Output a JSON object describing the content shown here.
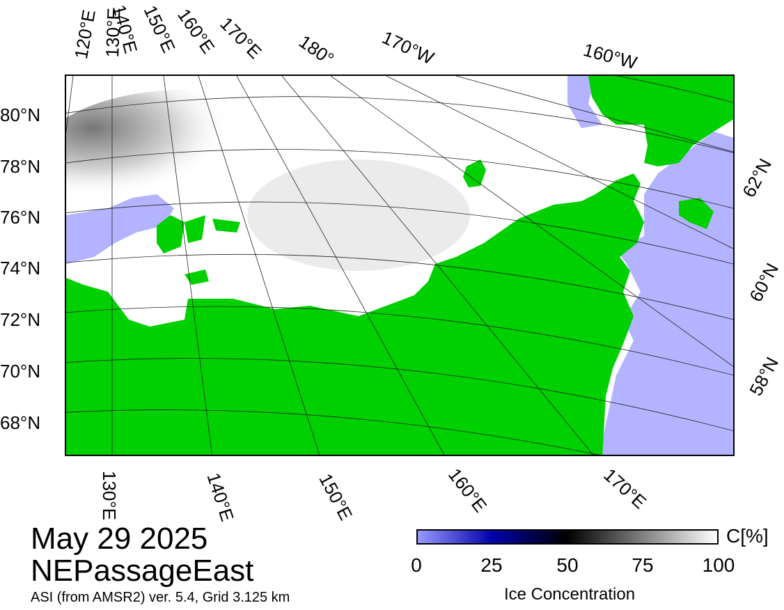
{
  "title": {
    "date": "May 29 2025",
    "region": "NEPassageEast"
  },
  "credit": "ASI (from AMSR2) ver. 5.4,  Grid 3.125 km",
  "colorbar": {
    "title": "Ice Concentration",
    "unit": "C[%]",
    "ticks": [
      "0",
      "25",
      "50",
      "75",
      "100"
    ],
    "colors": [
      "#9999ff",
      "#0000aa",
      "#000000",
      "#ffffff"
    ]
  },
  "colors": {
    "land": "#00d000",
    "open_water": "#b3b3ff",
    "ice": "#ffffff"
  },
  "graticule": {
    "left_lat": [
      "80°N",
      "78°N",
      "76°N",
      "74°N",
      "72°N",
      "70°N",
      "68°N"
    ],
    "right_lat": [
      "62°N",
      "60°N",
      "58°N"
    ],
    "top_lon": [
      "120°E",
      "130°E",
      "140°E",
      "150°E",
      "160°E",
      "170°E",
      "180°",
      "170°W",
      "160°W"
    ],
    "bottom_lon": [
      "130°E",
      "140°E",
      "150°E",
      "160°E",
      "170°E"
    ]
  }
}
